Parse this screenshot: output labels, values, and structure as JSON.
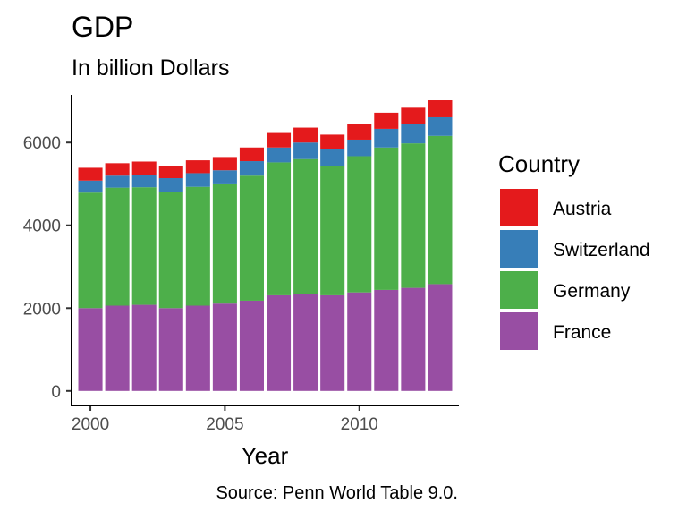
{
  "chart_data": {
    "type": "bar",
    "stacked": true,
    "title": "GDP",
    "subtitle": "In billion Dollars",
    "xlabel": "Year",
    "ylabel": "",
    "caption": "Source: Penn World Table 9.0.",
    "legend_title": "Country",
    "legend_position": "right",
    "grid": false,
    "x": [
      2000,
      2001,
      2002,
      2003,
      2004,
      2005,
      2006,
      2007,
      2008,
      2009,
      2010,
      2011,
      2012,
      2013
    ],
    "xlim": [
      1999.3,
      2013.7
    ],
    "ylim": [
      -350,
      7150
    ],
    "x_ticks": [
      2000,
      2005,
      2010
    ],
    "y_ticks": [
      0,
      2000,
      4000,
      6000
    ],
    "series": [
      {
        "name": "France",
        "color": "#984EA3",
        "values": [
          2000,
          2060,
          2080,
          2000,
          2060,
          2110,
          2180,
          2310,
          2350,
          2310,
          2380,
          2440,
          2490,
          2580
        ]
      },
      {
        "name": "Germany",
        "color": "#4DAF4A",
        "values": [
          2790,
          2850,
          2840,
          2810,
          2870,
          2880,
          3020,
          3210,
          3250,
          3130,
          3290,
          3440,
          3490,
          3580
        ]
      },
      {
        "name": "Switzerland",
        "color": "#377EB8",
        "values": [
          290,
          290,
          300,
          330,
          330,
          340,
          350,
          360,
          400,
          410,
          400,
          450,
          460,
          450
        ]
      },
      {
        "name": "Austria",
        "color": "#E41A1C",
        "values": [
          310,
          300,
          320,
          300,
          310,
          320,
          330,
          350,
          360,
          340,
          380,
          390,
          400,
          410
        ]
      }
    ],
    "legend_order": [
      "Austria",
      "Switzerland",
      "Germany",
      "France"
    ]
  }
}
